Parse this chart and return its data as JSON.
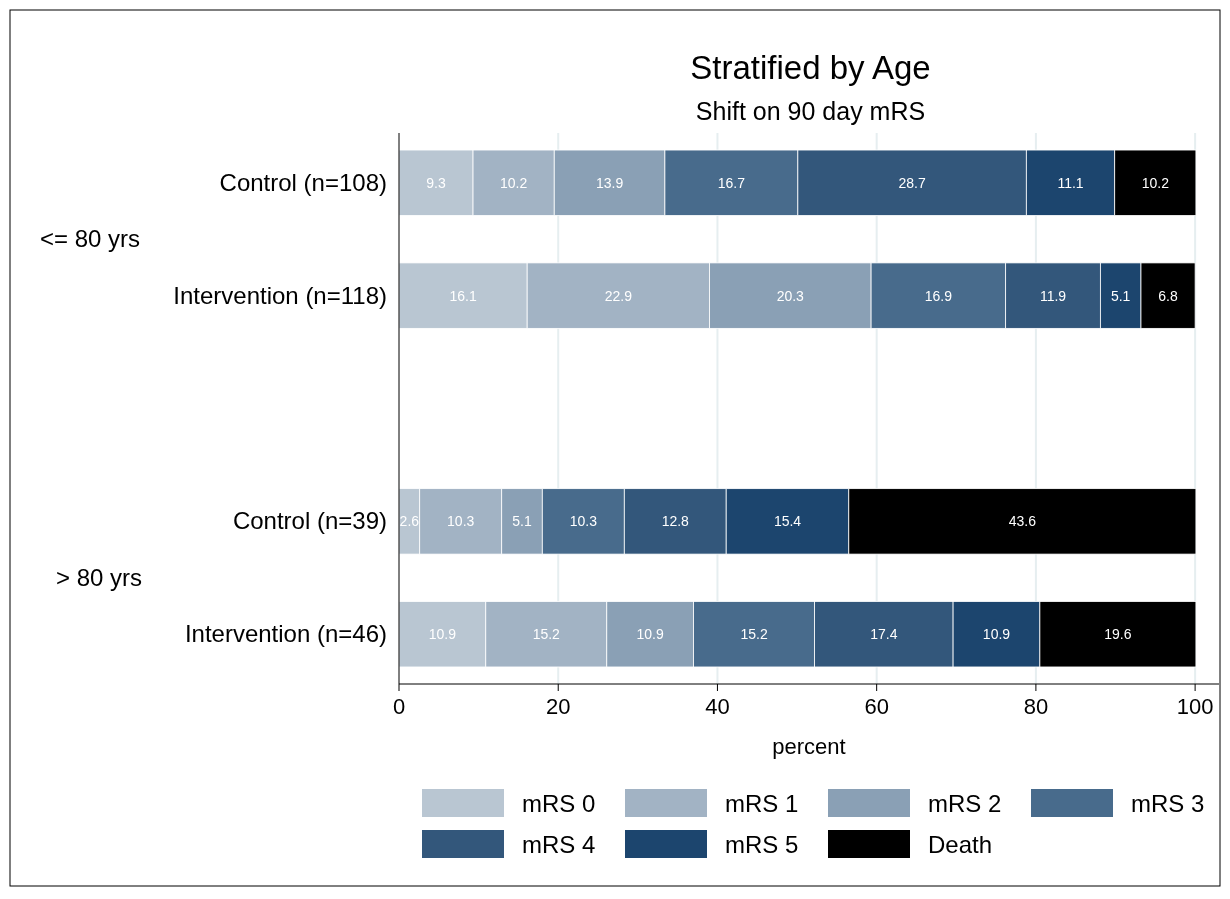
{
  "chart_data": {
    "type": "bar",
    "orientation": "horizontal",
    "stacked": true,
    "title": "Stratified by Age",
    "subtitle": "Shift on 90 day mRS",
    "xlabel": "percent",
    "categories": [
      "Control (n=108)",
      "Intervention (n=118)",
      null,
      "Control (n=39)",
      "Intervention (n=46)"
    ],
    "annotations": [
      "<= 80 yrs",
      "> 80 yrs"
    ],
    "series": [
      {
        "name": "mRS 0",
        "color": "#b9c6d2",
        "values": [
          9.3,
          16.1,
          null,
          2.6,
          10.9
        ]
      },
      {
        "name": "mRS 1",
        "color": "#a2b3c4",
        "values": [
          10.2,
          22.9,
          null,
          10.3,
          15.2
        ]
      },
      {
        "name": "mRS 2",
        "color": "#8aa0b5",
        "values": [
          13.9,
          20.3,
          null,
          5.1,
          10.9
        ]
      },
      {
        "name": "mRS 3",
        "color": "#486b8c",
        "values": [
          16.7,
          16.9,
          null,
          10.3,
          15.2
        ]
      },
      {
        "name": "mRS 4",
        "color": "#33577b",
        "values": [
          28.7,
          11.9,
          null,
          12.8,
          17.4
        ]
      },
      {
        "name": "mRS 5",
        "color": "#1c456e",
        "values": [
          11.1,
          5.1,
          null,
          15.4,
          10.9
        ]
      },
      {
        "name": "Death",
        "color": "#000000",
        "values": [
          10.2,
          6.8,
          null,
          43.6,
          19.6
        ]
      }
    ],
    "xlim": [
      0,
      103
    ],
    "xticks": [
      0,
      20,
      40,
      60,
      80,
      100
    ],
    "grid": "x",
    "data_labels": true,
    "legend": "bottom"
  }
}
